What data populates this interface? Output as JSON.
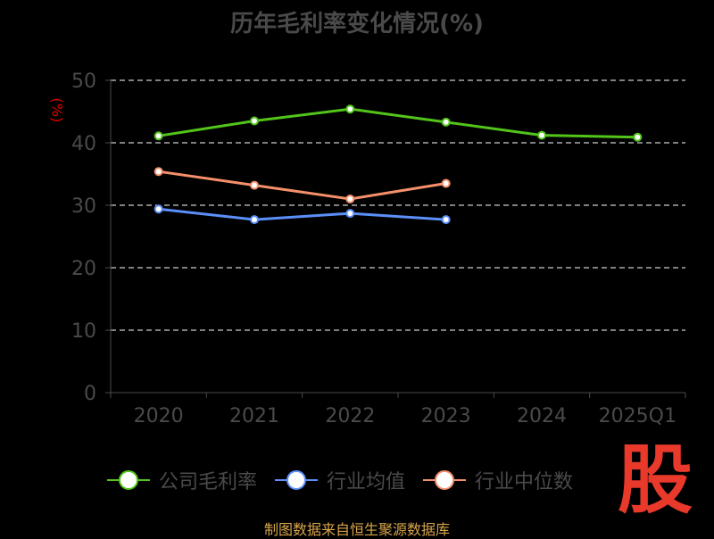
{
  "colors": {
    "company": "#52c41a",
    "industry_avg": "#5b8ff9",
    "industry_median": "#f5906a",
    "grid": "#ffffff",
    "axis": "#4a4a4a",
    "text": "#4a4a4a",
    "ylabel": "#e00000",
    "footer": "#d7a54a",
    "logo": "#e8392b"
  },
  "footer_text": "制图数据来自恒生聚源数据库",
  "logo_text": "股",
  "chart_data": {
    "type": "line",
    "title": "历年毛利率变化情况(%)",
    "ylabel": "(%)",
    "xlabel": "",
    "categories": [
      "2020",
      "2021",
      "2022",
      "2023",
      "2024",
      "2025Q1"
    ],
    "ylim": [
      0,
      50
    ],
    "yticks": [
      0,
      10,
      20,
      30,
      40,
      50
    ],
    "grid": true,
    "legend_position": "bottom",
    "series": [
      {
        "name": "公司毛利率",
        "color_key": "company",
        "values": [
          41.1,
          43.5,
          45.4,
          43.3,
          41.2,
          40.9
        ]
      },
      {
        "name": "行业均值",
        "color_key": "industry_avg",
        "values": [
          29.4,
          27.7,
          28.7,
          27.7,
          null,
          null
        ]
      },
      {
        "name": "行业中位数",
        "color_key": "industry_median",
        "values": [
          35.4,
          33.2,
          31.0,
          33.5,
          null,
          null
        ]
      }
    ]
  }
}
